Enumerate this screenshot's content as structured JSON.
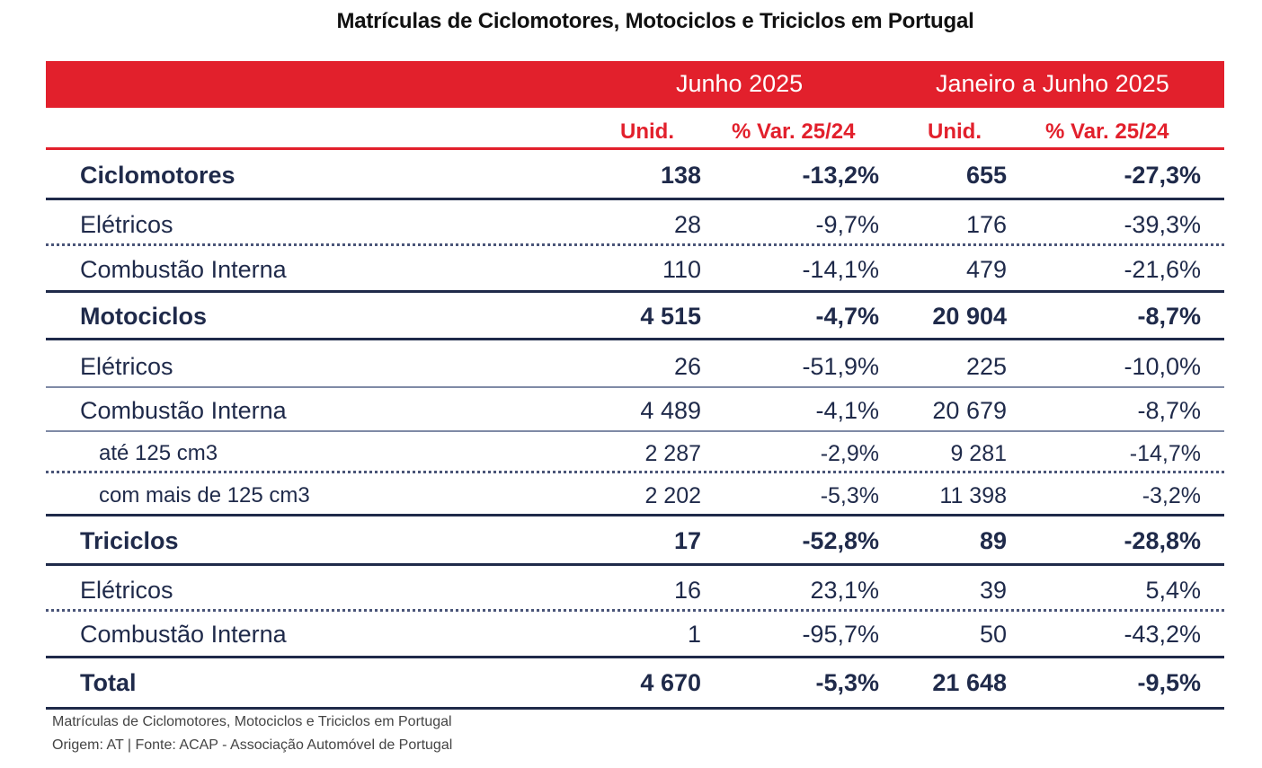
{
  "title": "Matrículas de Ciclomotores, Motociclos e Triciclos em Portugal",
  "header": {
    "group1": "Junho 2025",
    "group2": "Janeiro a Junho 2025",
    "col_unid": "Unid.",
    "col_var": "% Var. 25/24"
  },
  "rows": [
    {
      "label": "Ciclomotores",
      "u1": "138",
      "v1": "-13,2%",
      "u2": "655",
      "v2": "-27,3%"
    },
    {
      "label": "Elétricos",
      "u1": "28",
      "v1": "-9,7%",
      "u2": "176",
      "v2": "-39,3%"
    },
    {
      "label": "Combustão Interna",
      "u1": "110",
      "v1": "-14,1%",
      "u2": "479",
      "v2": "-21,6%"
    },
    {
      "label": "Motociclos",
      "u1": "4 515",
      "v1": "-4,7%",
      "u2": "20 904",
      "v2": "-8,7%"
    },
    {
      "label": "Elétricos",
      "u1": "26",
      "v1": "-51,9%",
      "u2": "225",
      "v2": "-10,0%"
    },
    {
      "label": "Combustão Interna",
      "u1": "4 489",
      "v1": "-4,1%",
      "u2": "20 679",
      "v2": "-8,7%"
    },
    {
      "label": "até 125 cm3",
      "u1": "2 287",
      "v1": "-2,9%",
      "u2": "9 281",
      "v2": "-14,7%"
    },
    {
      "label": "com mais de 125 cm3",
      "u1": "2 202",
      "v1": "-5,3%",
      "u2": "11 398",
      "v2": "-3,2%"
    },
    {
      "label": "Triciclos",
      "u1": "17",
      "v1": "-52,8%",
      "u2": "89",
      "v2": "-28,8%"
    },
    {
      "label": "Elétricos",
      "u1": "16",
      "v1": "23,1%",
      "u2": "39",
      "v2": "5,4%"
    },
    {
      "label": "Combustão Interna",
      "u1": "1",
      "v1": "-95,7%",
      "u2": "50",
      "v2": "-43,2%"
    },
    {
      "label": "Total",
      "u1": "4 670",
      "v1": "-5,3%",
      "u2": "21 648",
      "v2": "-9,5%"
    }
  ],
  "footer": {
    "line1": "Matrículas de Ciclomotores, Motociclos e Triciclos em Portugal",
    "line2": "Origem: AT | Fonte: ACAP - Associação Automóvel de Portugal"
  }
}
